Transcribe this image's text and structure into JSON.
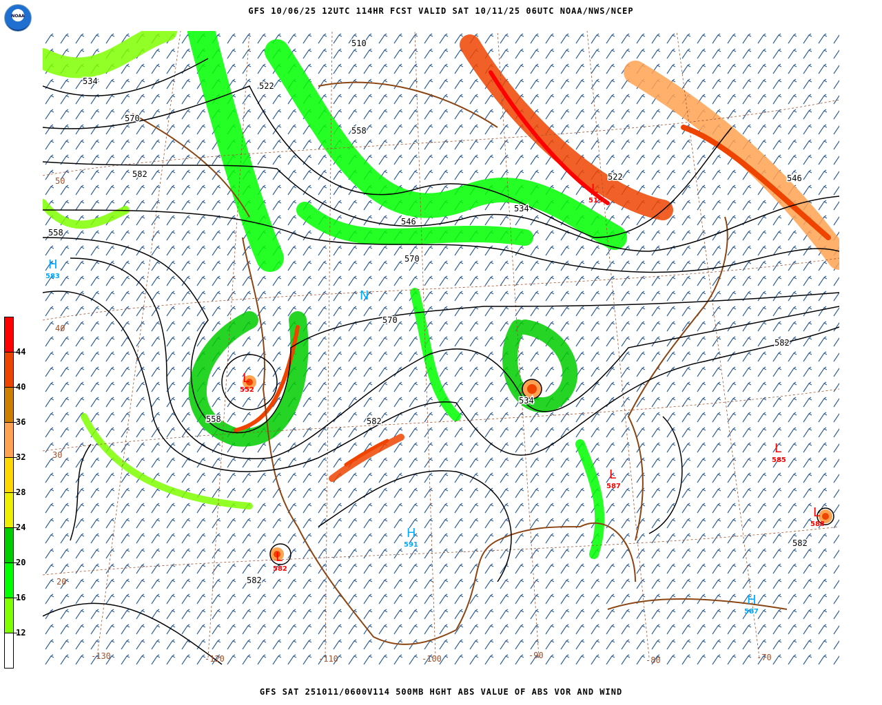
{
  "header": {
    "title": "GFS 10/06/25 12UTC 114HR FCST VALID SAT 10/11/25 06UTC NOAA/NWS/NCEP",
    "logo_text": "NOAA"
  },
  "footer": {
    "title": "GFS SAT 251011/0600V114 500MB HGHT ABS VALUE OF ABS VOR AND WIND"
  },
  "legend": {
    "levels": [
      {
        "label": "",
        "color": "#ff0000"
      },
      {
        "label": "44",
        "color": "#ee4400"
      },
      {
        "label": "40",
        "color": "#cc7f00"
      },
      {
        "label": "36",
        "color": "#ffa352"
      },
      {
        "label": "32",
        "color": "#ffd700"
      },
      {
        "label": "28",
        "color": "#eeee00"
      },
      {
        "label": "24",
        "color": "#00cc00"
      },
      {
        "label": "20",
        "color": "#00ff00"
      },
      {
        "label": "16",
        "color": "#7fff00"
      },
      {
        "label": "12",
        "color": "#ffffff"
      }
    ]
  },
  "map": {
    "colors": {
      "contour": "#000000",
      "coast": "#8b4513",
      "barb": "#1a4d8c",
      "high": "#00aaff",
      "low": "#ff0000",
      "grid": "#a0522d"
    },
    "contour_labels": [
      "510",
      "534",
      "522",
      "558",
      "570",
      "582",
      "546",
      "534",
      "558",
      "570",
      "522",
      "546",
      "582",
      "570",
      "558",
      "582",
      "534",
      "582",
      "582"
    ],
    "lon_labels": [
      "-130",
      "-120",
      "-110",
      "-100",
      "-90",
      "-80",
      "-70"
    ],
    "lat_labels": [
      "50",
      "40",
      "30",
      "20"
    ],
    "centers": [
      {
        "type": "H",
        "value": "583"
      },
      {
        "type": "L",
        "value": "552"
      },
      {
        "type": "L",
        "value": "519"
      },
      {
        "type": "H",
        "value": "591"
      },
      {
        "type": "L",
        "value": "585"
      },
      {
        "type": "L",
        "value": "587"
      },
      {
        "type": "L",
        "value": "588"
      },
      {
        "type": "H",
        "value": "587"
      },
      {
        "type": "L",
        "value": "582"
      },
      {
        "type": "N",
        "value": ""
      }
    ]
  }
}
